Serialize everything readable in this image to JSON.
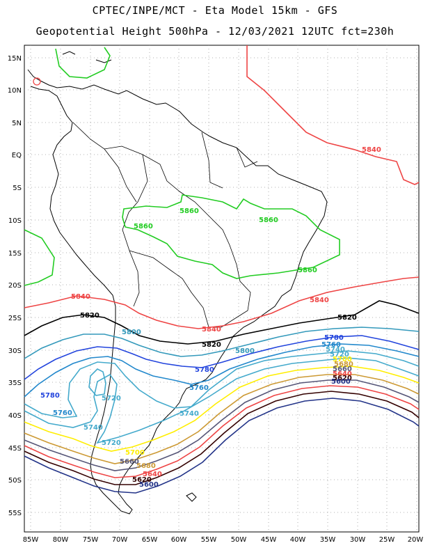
{
  "header": {
    "line1": "CPTEC/INPE/MCT -  Eta Model 15km - GFS",
    "line2": "Geopotential Height 500hPa - 12/03/2021 12UTC fct=230h"
  },
  "axes": {
    "lat_labels": [
      "15N",
      "10N",
      "5N",
      "EQ",
      "5S",
      "10S",
      "15S",
      "20S",
      "25S",
      "30S",
      "35S",
      "40S",
      "45S",
      "50S",
      "55S"
    ],
    "lon_labels": [
      "85W",
      "80W",
      "75W",
      "70W",
      "65W",
      "60W",
      "55W",
      "50W",
      "45W",
      "40W",
      "35W",
      "30W",
      "25W",
      "20W"
    ]
  },
  "contours": [
    {
      "value": "5860",
      "color": "#22cc22"
    },
    {
      "value": "5840",
      "color": "#ee4444"
    },
    {
      "value": "5820",
      "color": "#000000"
    },
    {
      "value": "5800",
      "color": "#3399bb"
    },
    {
      "value": "5780",
      "color": "#2244dd"
    },
    {
      "value": "5760",
      "color": "#2288cc"
    },
    {
      "value": "5740",
      "color": "#44aacc"
    },
    {
      "value": "5720",
      "color": "#44aacc"
    },
    {
      "value": "5700",
      "color": "#ffee00"
    },
    {
      "value": "5680",
      "color": "#cc9933"
    },
    {
      "value": "5660",
      "color": "#555577"
    },
    {
      "value": "5640",
      "color": "#ee4444"
    },
    {
      "value": "5620",
      "color": "#330000"
    },
    {
      "value": "5600",
      "color": "#223388"
    }
  ],
  "labels": {
    "c5860a": "5860",
    "c5860b": "5860",
    "c5860c": "5860",
    "c5860d": "5860",
    "c5840a": "5840",
    "c5840b": "5840",
    "c5840c": "5840",
    "c5840d": "5840",
    "c5820a": "5820",
    "c5820b": "5820",
    "c5820c": "5820",
    "c5800a": "5800",
    "c5800b": "5800",
    "c5780a": "5780",
    "c5780b": "5780",
    "c5780c": "5780",
    "c5760a": "5760",
    "c5760b": "5760",
    "c5760c": "5760",
    "c5740a": "5740",
    "c5740b": "5740",
    "c5740c": "5740",
    "c5720a": "5720",
    "c5720b": "5720",
    "c5720c": "5720",
    "c5700a": "5700",
    "c5700b": "5700",
    "c5680a": "5680",
    "c5680b": "5680",
    "c5660a": "5660",
    "c5660b": "5660",
    "c5640a": "5640",
    "c5640b": "5640",
    "c5620a": "5620",
    "c5620b": "5620",
    "c5600a": "5600",
    "c5600b": "5600"
  }
}
